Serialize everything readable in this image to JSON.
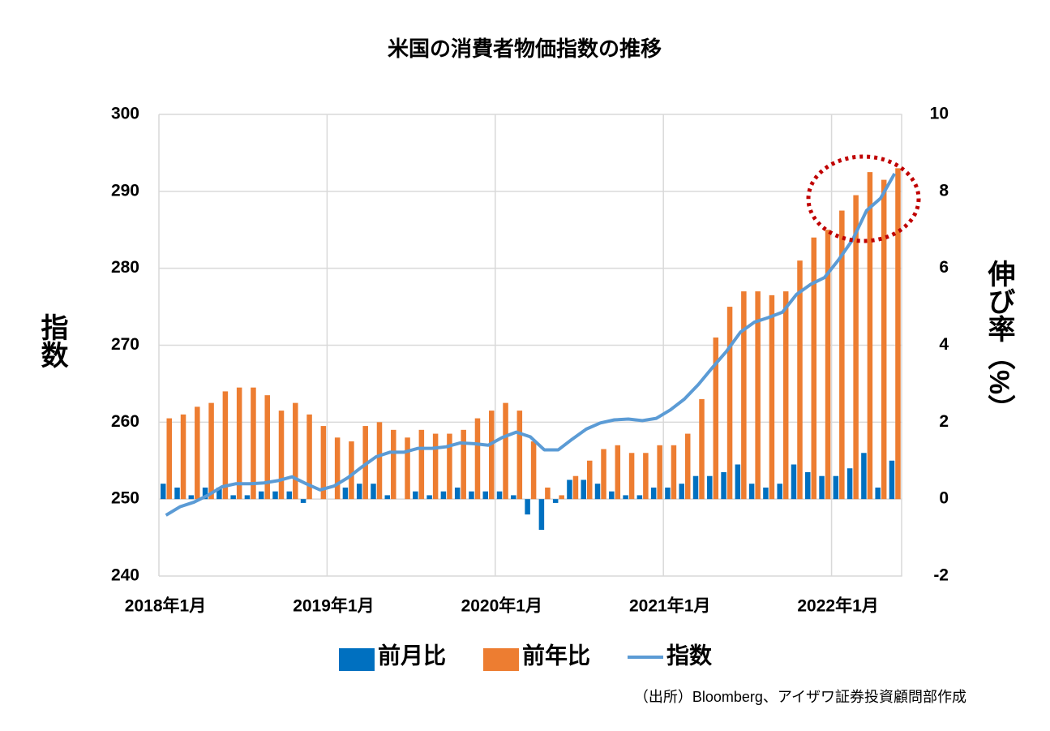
{
  "chart_data": {
    "type": "bar",
    "title": "米国の消費者物価指数の推移",
    "y_label": "指数",
    "y2_label": "伸び率（%）",
    "source": "（出所）Bloomberg、アイザワ証券投資顧問部作成",
    "categories": [
      "2018年1月",
      null,
      null,
      null,
      null,
      null,
      null,
      null,
      null,
      null,
      null,
      null,
      "2019年1月",
      null,
      null,
      null,
      null,
      null,
      null,
      null,
      null,
      null,
      null,
      null,
      "2020年1月",
      null,
      null,
      null,
      null,
      null,
      null,
      null,
      null,
      null,
      null,
      null,
      "2021年1月",
      null,
      null,
      null,
      null,
      null,
      null,
      null,
      null,
      null,
      null,
      null,
      "2022年1月",
      null,
      null,
      null,
      null
    ],
    "ylim": [
      240,
      300
    ],
    "yticks": [
      240,
      250,
      260,
      270,
      280,
      290,
      300
    ],
    "y2lim": [
      -2,
      10
    ],
    "y2ticks": [
      -2,
      0,
      2,
      4,
      6,
      8,
      10
    ],
    "grid": true,
    "series": [
      {
        "name": "前月比",
        "type": "bar",
        "axis": "y2",
        "color": "#0070c0",
        "values": [
          0.4,
          0.3,
          0.1,
          0.3,
          0.3,
          0.1,
          0.1,
          0.2,
          0.2,
          0.2,
          -0.1,
          0.0,
          0.0,
          0.3,
          0.4,
          0.4,
          0.1,
          0.0,
          0.2,
          0.1,
          0.2,
          0.3,
          0.2,
          0.2,
          0.2,
          0.1,
          -0.4,
          -0.8,
          -0.1,
          0.5,
          0.5,
          0.4,
          0.2,
          0.1,
          0.1,
          0.3,
          0.3,
          0.4,
          0.6,
          0.6,
          0.7,
          0.9,
          0.4,
          0.3,
          0.4,
          0.9,
          0.7,
          0.6,
          0.6,
          0.8,
          1.2,
          0.3,
          1.0
        ]
      },
      {
        "name": "前年比",
        "type": "bar",
        "axis": "y2",
        "color": "#ed7d31",
        "values": [
          2.1,
          2.2,
          2.4,
          2.5,
          2.8,
          2.9,
          2.9,
          2.7,
          2.3,
          2.5,
          2.2,
          1.9,
          1.6,
          1.5,
          1.9,
          2.0,
          1.8,
          1.6,
          1.8,
          1.7,
          1.7,
          1.8,
          2.1,
          2.3,
          2.5,
          2.3,
          1.5,
          0.3,
          0.1,
          0.6,
          1.0,
          1.3,
          1.4,
          1.2,
          1.2,
          1.4,
          1.4,
          1.7,
          2.6,
          4.2,
          5.0,
          5.4,
          5.4,
          5.3,
          5.4,
          6.2,
          6.8,
          7.0,
          7.5,
          7.9,
          8.5,
          8.3,
          8.6
        ]
      },
      {
        "name": "指数",
        "type": "line",
        "axis": "y",
        "color": "#5b9bd5",
        "values": [
          247.9,
          249.0,
          249.6,
          250.5,
          251.6,
          252.0,
          252.0,
          252.1,
          252.4,
          252.9,
          252.0,
          251.2,
          251.7,
          252.8,
          254.2,
          255.5,
          256.1,
          256.1,
          256.6,
          256.6,
          256.8,
          257.3,
          257.2,
          257.0,
          258.0,
          258.7,
          258.1,
          256.4,
          256.4,
          257.8,
          259.1,
          259.9,
          260.3,
          260.4,
          260.2,
          260.5,
          261.6,
          263.0,
          264.9,
          267.1,
          269.2,
          271.7,
          273.0,
          273.6,
          274.3,
          276.6,
          277.9,
          278.8,
          281.1,
          283.7,
          287.5,
          289.1,
          292.3
        ]
      }
    ]
  }
}
